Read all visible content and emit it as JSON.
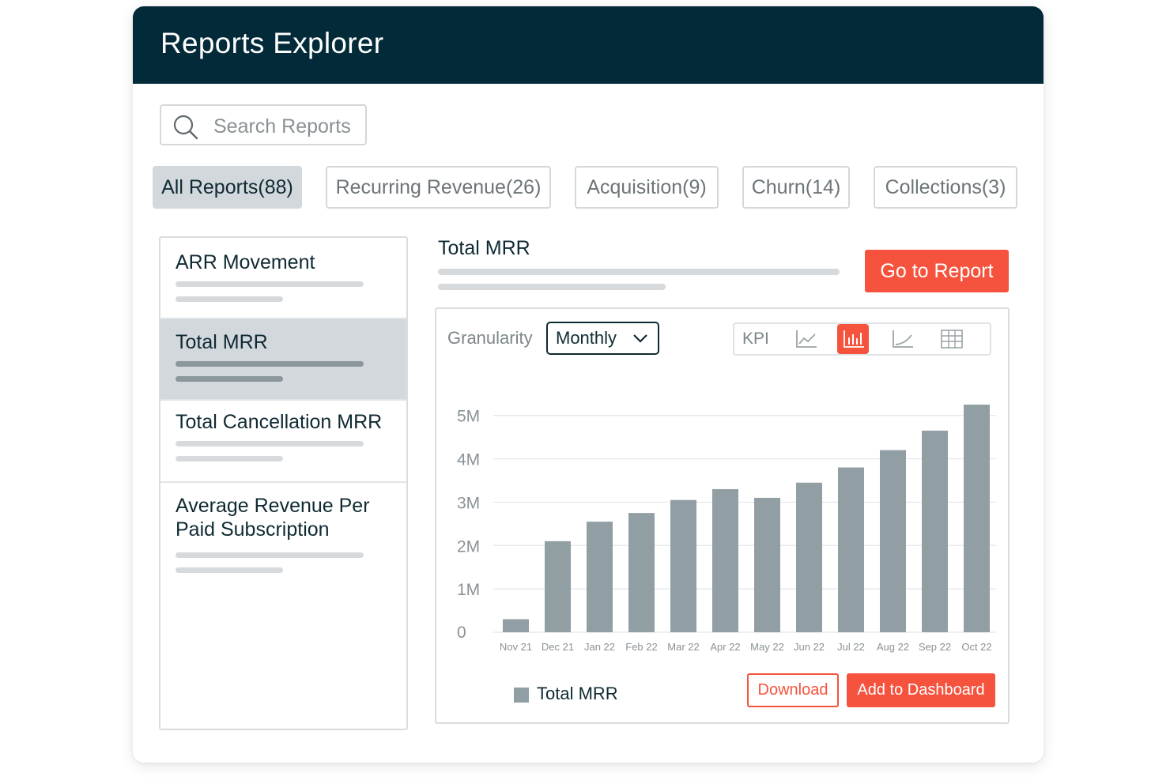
{
  "header": {
    "title": "Reports Explorer"
  },
  "search": {
    "placeholder": "Search Reports",
    "icon": "search-icon"
  },
  "tabs": [
    {
      "label": "All Reports(88)",
      "active": true
    },
    {
      "label": "Recurring Revenue(26)",
      "active": false
    },
    {
      "label": "Acquisition(9)",
      "active": false
    },
    {
      "label": "Churn(14)",
      "active": false
    },
    {
      "label": "Collections(3)",
      "active": false
    }
  ],
  "reports": [
    {
      "label": "ARR Movement",
      "active": false
    },
    {
      "label": "Total MRR",
      "active": true
    },
    {
      "label": "Total Cancellation MRR",
      "active": false
    },
    {
      "label": "Average Revenue Per Paid Subscription",
      "active": false
    }
  ],
  "detail": {
    "title": "Total MRR",
    "go_button": "Go to Report",
    "granularity_label": "Granularity",
    "granularity_value": "Monthly",
    "view_options": {
      "kpi_label": "KPI",
      "icons": [
        "line-chart-icon",
        "bar-chart-icon",
        "area-chart-icon",
        "table-icon"
      ],
      "active": "bar-chart-icon"
    },
    "download_button": "Download",
    "add_button": "Add to Dashboard"
  },
  "colors": {
    "header_bg": "#022a38",
    "accent": "#f5533d",
    "bar": "#919ea3"
  },
  "chart_data": {
    "type": "bar",
    "categories": [
      "Nov 21",
      "Dec 21",
      "Jan 22",
      "Feb 22",
      "Mar 22",
      "Apr 22",
      "May 22",
      "Jun 22",
      "Jul 22",
      "Aug 22",
      "Sep 22",
      "Oct 22"
    ],
    "series": [
      {
        "name": "Total MRR",
        "values": [
          300000,
          2100000,
          2550000,
          2750000,
          3050000,
          3300000,
          3100000,
          3450000,
          3800000,
          4200000,
          4650000,
          5250000
        ]
      }
    ],
    "ytick_labels": [
      "0",
      "1M",
      "2M",
      "3M",
      "4M",
      "5M"
    ],
    "ytick_values": [
      0,
      1000000,
      2000000,
      3000000,
      4000000,
      5000000
    ],
    "ylim": [
      0,
      5250000
    ],
    "grid": true,
    "legend": "bottom-left"
  }
}
